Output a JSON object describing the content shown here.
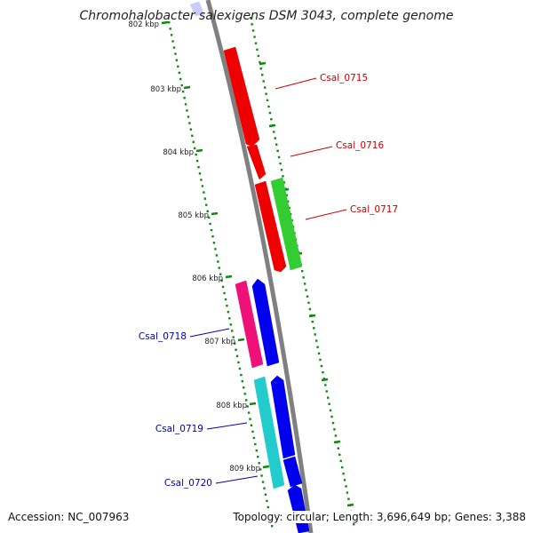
{
  "title": "Chromohalobacter salexigens DSM 3043, complete genome",
  "accession": "Accession: NC_007963",
  "topology": "Topology: circular; Length: 3,696,649 bp; Genes: 3,388",
  "colors": {
    "backbone": "#808080",
    "ticks": "#118811",
    "strand_forward_red": "#ee0000",
    "strand_forward_green": "#33cc33",
    "pink": "#ee1177",
    "blue": "#0000ee",
    "cyan": "#22cccc",
    "label_red": "#cc0000",
    "label_blue": "#0000bb"
  },
  "ticks": [
    {
      "label": "802 kbp"
    },
    {
      "label": "803 kbp"
    },
    {
      "label": "804 kbp"
    },
    {
      "label": "805 kbp"
    },
    {
      "label": "806 kbp"
    },
    {
      "label": "807 kbp"
    },
    {
      "label": "808 kbp"
    },
    {
      "label": "809 kbp"
    }
  ],
  "gene_labels": [
    {
      "name": "Csal_0715",
      "color": "#cc0000"
    },
    {
      "name": "Csal_0716",
      "color": "#cc0000"
    },
    {
      "name": "Csal_0717",
      "color": "#cc0000"
    },
    {
      "name": "Csal_0718",
      "color": "#0000bb"
    },
    {
      "name": "Csal_0719",
      "color": "#0000bb"
    },
    {
      "name": "Csal_0720",
      "color": "#0000bb"
    }
  ]
}
